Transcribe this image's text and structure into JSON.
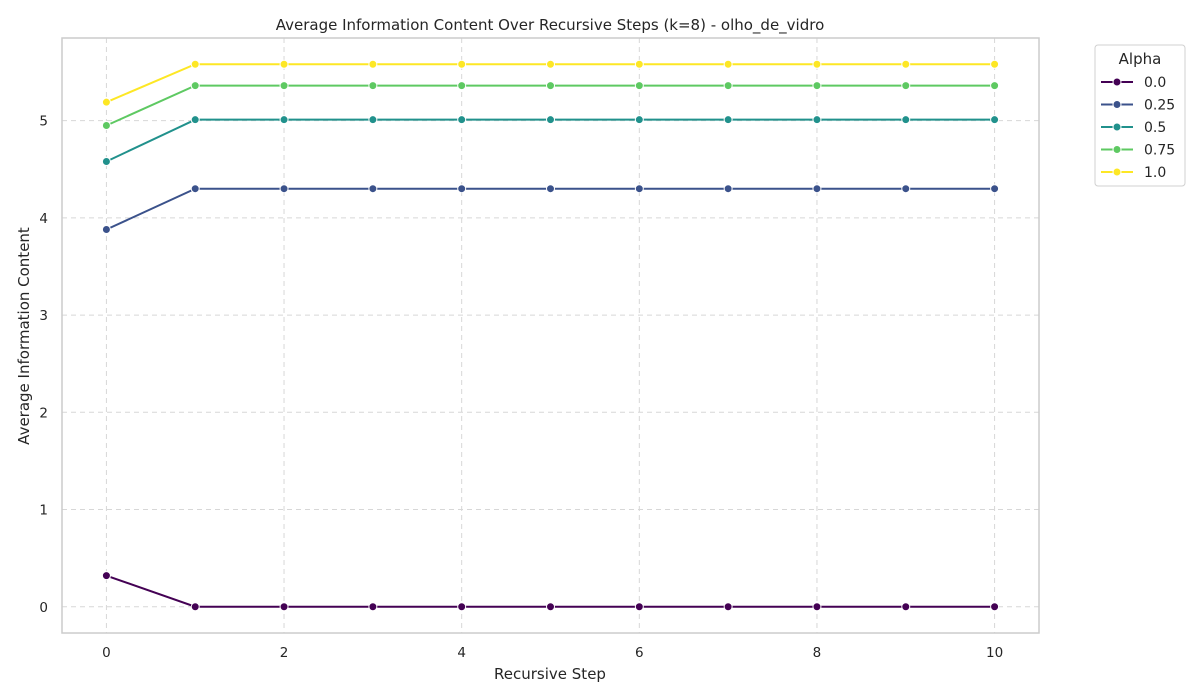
{
  "chart_data": {
    "type": "line",
    "title": "Average Information Content Over Recursive Steps (k=8) - olho_de_vidro",
    "xlabel": "Recursive Step",
    "ylabel": "Average Information Content",
    "x": [
      0,
      1,
      2,
      3,
      4,
      5,
      6,
      7,
      8,
      9,
      10
    ],
    "xlim": [
      -0.5,
      10.5
    ],
    "ylim": [
      -0.27,
      5.85
    ],
    "xticks": [
      0,
      2,
      4,
      6,
      8,
      10
    ],
    "yticks": [
      0,
      1,
      2,
      3,
      4,
      5
    ],
    "grid": true,
    "legend": {
      "title": "Alpha",
      "placement": "outside-top-right"
    },
    "series": [
      {
        "name": "0.0",
        "color": "#440154",
        "values": [
          0.32,
          0.0,
          0.0,
          0.0,
          0.0,
          0.0,
          0.0,
          0.0,
          0.0,
          0.0,
          0.0
        ]
      },
      {
        "name": "0.25",
        "color": "#3b528b",
        "values": [
          3.88,
          4.3,
          4.3,
          4.3,
          4.3,
          4.3,
          4.3,
          4.3,
          4.3,
          4.3,
          4.3
        ]
      },
      {
        "name": "0.5",
        "color": "#21918c",
        "values": [
          4.58,
          5.01,
          5.01,
          5.01,
          5.01,
          5.01,
          5.01,
          5.01,
          5.01,
          5.01,
          5.01
        ]
      },
      {
        "name": "0.75",
        "color": "#5ec962",
        "values": [
          4.95,
          5.36,
          5.36,
          5.36,
          5.36,
          5.36,
          5.36,
          5.36,
          5.36,
          5.36,
          5.36
        ]
      },
      {
        "name": "1.0",
        "color": "#fde725",
        "values": [
          5.19,
          5.58,
          5.58,
          5.58,
          5.58,
          5.58,
          5.58,
          5.58,
          5.58,
          5.58,
          5.58
        ]
      }
    ]
  }
}
